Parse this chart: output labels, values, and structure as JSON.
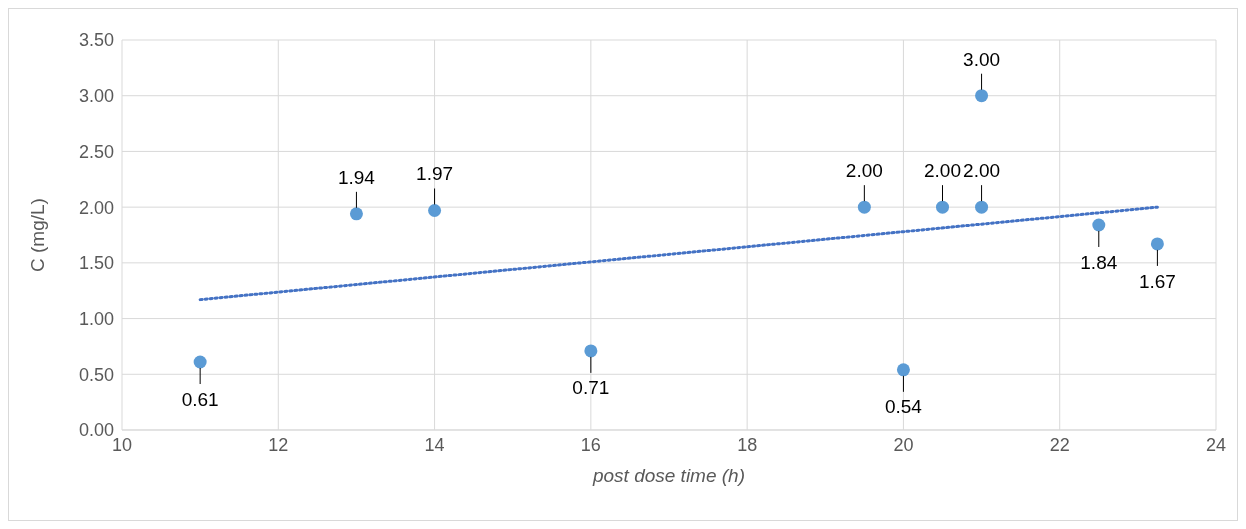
{
  "chart_data": {
    "type": "scatter",
    "xlabel": "post dose time (h)",
    "ylabel": "C (mg/L)",
    "xlim": [
      10,
      24
    ],
    "xticks": [
      10,
      12,
      14,
      16,
      18,
      20,
      22,
      24
    ],
    "ylim": [
      0,
      3.5
    ],
    "yticks": [
      {
        "value": 0,
        "label": "0.00"
      },
      {
        "value": 0.5,
        "label": "0.50"
      },
      {
        "value": 1,
        "label": "1.00"
      },
      {
        "value": 1.5,
        "label": "1.50"
      },
      {
        "value": 2,
        "label": "2.00"
      },
      {
        "value": 2.5,
        "label": "2.50"
      },
      {
        "value": 3,
        "label": "3.00"
      },
      {
        "value": 3.5,
        "label": "3.50"
      }
    ],
    "grid": true,
    "series": [
      {
        "marker": "circle",
        "color": "#5b9bd5",
        "x": [
          11,
          13,
          14,
          16,
          19.5,
          20,
          20.5,
          21,
          21,
          22.5,
          23.25
        ],
        "values": [
          0.61,
          1.94,
          1.97,
          0.71,
          2.0,
          0.54,
          2.0,
          2.0,
          3.0,
          1.84,
          1.67
        ],
        "value_labels": [
          "0.61",
          "1.94",
          "1.97",
          "0.71",
          "2.00",
          "0.54",
          "2.00",
          "2.00",
          "3.00",
          "1.84",
          "1.67"
        ]
      },
      {
        "type": "line",
        "color": "#4472c4",
        "line_style": "dotted",
        "x": [
          11,
          23.25
        ],
        "values": [
          1.17,
          2.0
        ]
      }
    ]
  }
}
